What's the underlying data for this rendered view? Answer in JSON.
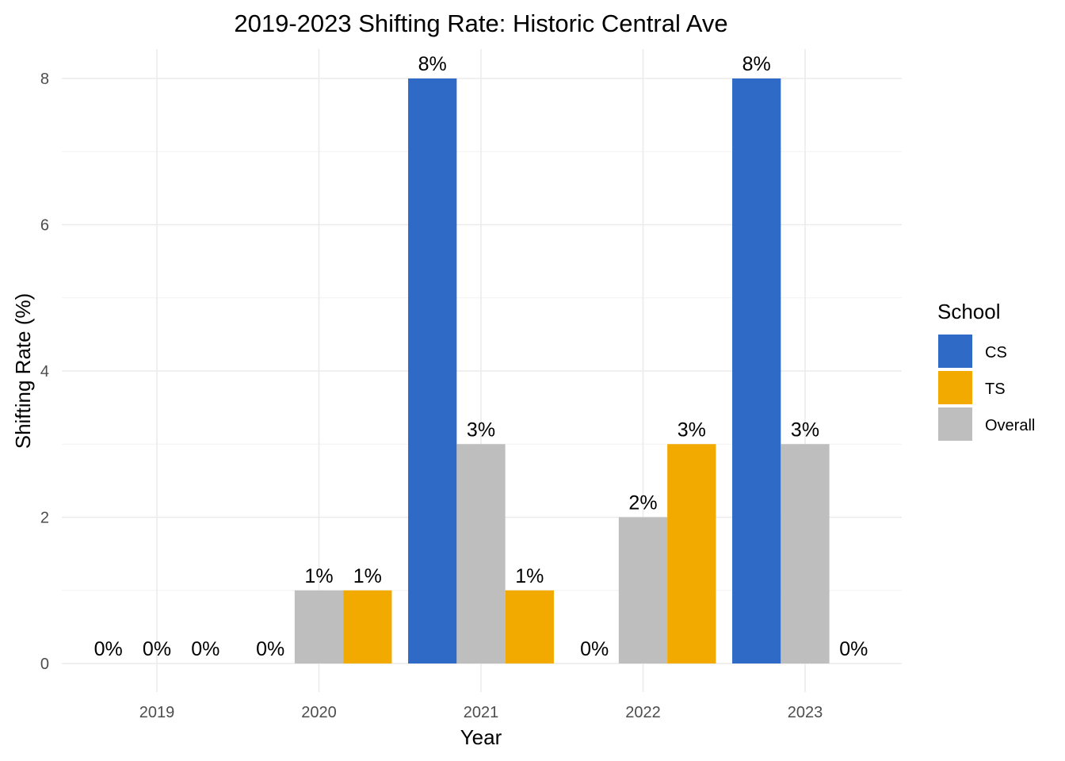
{
  "chart_data": {
    "type": "bar",
    "title": "2019-2023 Shifting Rate: Historic Central Ave",
    "xlabel": "Year",
    "ylabel": "Shifting Rate (%)",
    "categories": [
      "2019",
      "2020",
      "2021",
      "2022",
      "2023"
    ],
    "series": [
      {
        "name": "CS",
        "color": "#2E6AC6",
        "values": [
          0,
          0,
          8,
          0,
          8
        ],
        "labels": [
          "0%",
          "0%",
          "8%",
          "0%",
          "8%"
        ]
      },
      {
        "name": "Overall",
        "color": "#BEBEBE",
        "values": [
          0,
          1,
          3,
          2,
          3
        ],
        "labels": [
          "0%",
          "1%",
          "3%",
          "2%",
          "3%"
        ]
      },
      {
        "name": "TS",
        "color": "#F2A900",
        "values": [
          0,
          1,
          1,
          3,
          0
        ],
        "labels": [
          "0%",
          "1%",
          "1%",
          "3%",
          "0%"
        ]
      }
    ],
    "ylim": [
      0,
      8
    ],
    "yticks": [
      0,
      2,
      4,
      6,
      8
    ],
    "grid": true,
    "legend": {
      "title": "School",
      "position": "right",
      "items": [
        {
          "name": "CS",
          "color": "#2E6AC6"
        },
        {
          "name": "TS",
          "color": "#F2A900"
        },
        {
          "name": "Overall",
          "color": "#BEBEBE"
        }
      ]
    }
  }
}
